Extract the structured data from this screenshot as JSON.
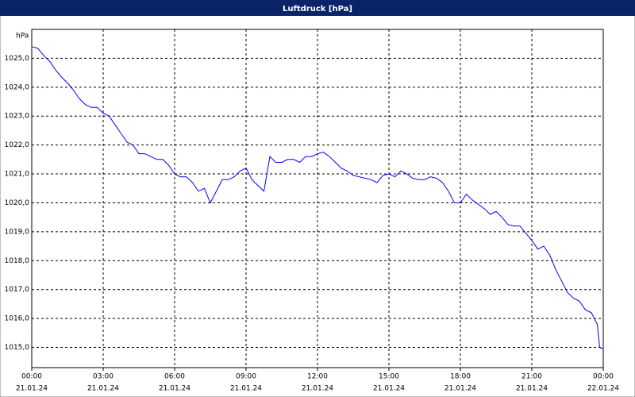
{
  "chart_data": {
    "type": "line",
    "title": "Luftdruck [hPa]",
    "ylabel": "hPa",
    "x": [
      0,
      0.25,
      0.5,
      0.75,
      1,
      1.25,
      1.5,
      1.75,
      2,
      2.25,
      2.5,
      2.75,
      3,
      3.25,
      3.5,
      3.75,
      4,
      4.25,
      4.5,
      4.75,
      5,
      5.25,
      5.5,
      5.75,
      6,
      6.25,
      6.5,
      6.75,
      7,
      7.25,
      7.5,
      7.75,
      8,
      8.25,
      8.5,
      8.75,
      9,
      9.25,
      9.5,
      9.75,
      10,
      10.25,
      10.5,
      10.75,
      11,
      11.25,
      11.5,
      11.75,
      12,
      12.25,
      12.5,
      12.75,
      13,
      13.25,
      13.5,
      13.75,
      14,
      14.25,
      14.5,
      14.75,
      15,
      15.25,
      15.5,
      15.75,
      16,
      16.25,
      16.5,
      16.75,
      17,
      17.25,
      17.5,
      17.75,
      18,
      18.25,
      18.5,
      18.75,
      19,
      19.25,
      19.5,
      19.75,
      20,
      20.25,
      20.5,
      20.75,
      21,
      21.25,
      21.5,
      21.75,
      22,
      22.25,
      22.5,
      22.75,
      23,
      23.25,
      23.5,
      23.75,
      23.85,
      24
    ],
    "series": [
      {
        "name": "Luftdruck",
        "color": "#0000ff",
        "values": [
          1025.4,
          1025.35,
          1025.1,
          1024.9,
          1024.6,
          1024.35,
          1024.15,
          1023.9,
          1023.6,
          1023.4,
          1023.3,
          1023.3,
          1023.1,
          1023.0,
          1022.7,
          1022.4,
          1022.1,
          1022.0,
          1021.7,
          1021.7,
          1021.6,
          1021.5,
          1021.5,
          1021.3,
          1021.0,
          1020.9,
          1020.9,
          1020.7,
          1020.4,
          1020.5,
          1020.0,
          1020.4,
          1020.8,
          1020.8,
          1020.9,
          1021.1,
          1021.2,
          1020.8,
          1020.6,
          1020.4,
          1021.6,
          1021.4,
          1021.4,
          1021.5,
          1021.5,
          1021.4,
          1021.6,
          1021.6,
          1021.7,
          1021.75,
          1021.6,
          1021.4,
          1021.2,
          1021.1,
          1020.95,
          1020.9,
          1020.85,
          1020.8,
          1020.7,
          1020.95,
          1021.0,
          1020.9,
          1021.1,
          1021.0,
          1020.85,
          1020.8,
          1020.8,
          1020.9,
          1020.85,
          1020.7,
          1020.4,
          1020.0,
          1020.0,
          1020.3,
          1020.1,
          1019.95,
          1019.8,
          1019.6,
          1019.7,
          1019.5,
          1019.25,
          1019.2,
          1019.2,
          1018.95,
          1018.7,
          1018.4,
          1018.5,
          1018.2,
          1017.7,
          1017.3,
          1016.9,
          1016.7,
          1016.6,
          1016.3,
          1016.2,
          1015.8,
          1015.0,
          1014.95
        ]
      }
    ],
    "xlim": [
      0,
      24
    ],
    "xticks": [
      {
        "value": 0,
        "label": "00:00"
      },
      {
        "value": 3,
        "label": "03:00"
      },
      {
        "value": 6,
        "label": "06:00"
      },
      {
        "value": 9,
        "label": "09:00"
      },
      {
        "value": 12,
        "label": "12:00"
      },
      {
        "value": 15,
        "label": "15:00"
      },
      {
        "value": 18,
        "label": "18:00"
      },
      {
        "value": 21,
        "label": "21:00"
      },
      {
        "value": 24,
        "label": "00:00"
      }
    ],
    "xtick_dates": [
      "21.01.24",
      "21.01.24",
      "21.01.24",
      "21.01.24",
      "21.01.24",
      "21.01.24",
      "21.01.24",
      "21.01.24",
      "22.01.24"
    ],
    "ylim": [
      1014.3,
      1026.0
    ],
    "yticks": [
      {
        "value": 1015,
        "label": "1015,0"
      },
      {
        "value": 1016,
        "label": "1016,0"
      },
      {
        "value": 1017,
        "label": "1017,0"
      },
      {
        "value": 1018,
        "label": "1018,0"
      },
      {
        "value": 1019,
        "label": "1019,0"
      },
      {
        "value": 1020,
        "label": "1020,0"
      },
      {
        "value": 1021,
        "label": "1021,0"
      },
      {
        "value": 1022,
        "label": "1022,0"
      },
      {
        "value": 1023,
        "label": "1023,0"
      },
      {
        "value": 1024,
        "label": "1024,0"
      },
      {
        "value": 1025,
        "label": "1025,0"
      }
    ],
    "grid": true
  }
}
